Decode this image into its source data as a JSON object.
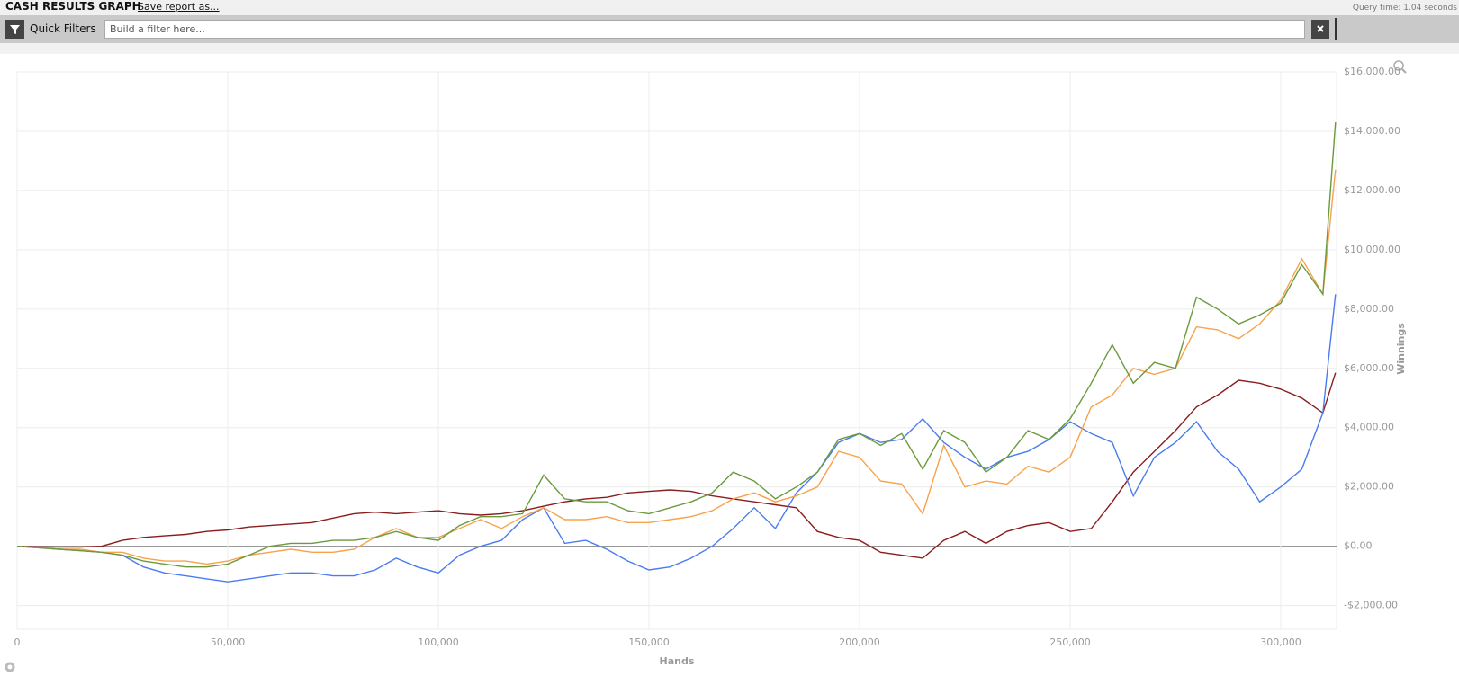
{
  "header": {
    "title": "CASH RESULTS GRAPH",
    "save_link": "Save report as...",
    "query_time": "Query time: 1.04 seconds"
  },
  "toolbar": {
    "quick_filters": "Quick Filters",
    "filter_placeholder": "Build a filter here..."
  },
  "chart_data": {
    "type": "line",
    "x_label": "Hands",
    "y_label": "Winnings",
    "grid": true,
    "xlim": [
      0,
      313250
    ],
    "ylim": [
      -2800,
      16000
    ],
    "xticks": [
      0,
      {
        "value": 50000,
        "label": "50,000"
      },
      {
        "value": 100000,
        "label": "100,000"
      },
      {
        "value": 150000,
        "label": "150,000"
      },
      {
        "value": 200000,
        "label": "200,000"
      },
      {
        "value": 250000,
        "label": "250,000"
      },
      {
        "value": 300000,
        "label": "300,000"
      }
    ],
    "yticks": [
      {
        "value": -2000,
        "label": "-$2,000.00"
      },
      {
        "value": 0,
        "label": "$0.00"
      },
      {
        "value": 2000,
        "label": "$2,000.00"
      },
      {
        "value": 4000,
        "label": "$4,000.00"
      },
      {
        "value": 6000,
        "label": "$6,000.00"
      },
      {
        "value": 8000,
        "label": "$8,000.00"
      },
      {
        "value": 10000,
        "label": "$10,000.00"
      },
      {
        "value": 12000,
        "label": "$12,000.00"
      },
      {
        "value": 14000,
        "label": "$14,000.00"
      },
      {
        "value": 16000,
        "label": "$16,000.00"
      }
    ],
    "x": [
      0,
      5000,
      10000,
      15000,
      20000,
      25000,
      30000,
      35000,
      40000,
      45000,
      50000,
      55000,
      60000,
      65000,
      70000,
      75000,
      80000,
      85000,
      90000,
      95000,
      100000,
      105000,
      110000,
      115000,
      120000,
      125000,
      130000,
      135000,
      140000,
      145000,
      150000,
      155000,
      160000,
      165000,
      170000,
      175000,
      180000,
      185000,
      190000,
      195000,
      200000,
      205000,
      210000,
      215000,
      220000,
      225000,
      230000,
      235000,
      240000,
      245000,
      250000,
      255000,
      260000,
      265000,
      270000,
      275000,
      280000,
      285000,
      290000,
      295000,
      300000,
      305000,
      310000,
      313000
    ],
    "series": [
      {
        "color": "#8b1c1c",
        "values": [
          0,
          -20,
          -30,
          -30,
          0,
          200,
          300,
          350,
          400,
          500,
          550,
          650,
          700,
          750,
          800,
          950,
          1100,
          1150,
          1100,
          1150,
          1200,
          1100,
          1050,
          1100,
          1200,
          1350,
          1500,
          1600,
          1650,
          1800,
          1850,
          1900,
          1850,
          1700,
          1600,
          1500,
          1400,
          1300,
          500,
          300,
          200,
          -200,
          -300,
          -400,
          200,
          500,
          100,
          500,
          700,
          800,
          500,
          600,
          1500,
          2500,
          3200,
          3900,
          4700,
          5100,
          5600,
          5500,
          5300,
          5000,
          4500,
          5850
        ]
      },
      {
        "color": "#4a7cf0",
        "values": [
          0,
          -50,
          -100,
          -150,
          -200,
          -300,
          -700,
          -900,
          -1000,
          -1100,
          -1200,
          -1100,
          -1000,
          -900,
          -900,
          -1000,
          -1000,
          -800,
          -400,
          -700,
          -900,
          -300,
          0,
          200,
          900,
          1300,
          100,
          200,
          -100,
          -500,
          -800,
          -700,
          -400,
          0,
          600,
          1300,
          600,
          1800,
          2500,
          3500,
          3800,
          3500,
          3600,
          4300,
          3500,
          3000,
          2600,
          3000,
          3200,
          3600,
          4200,
          3800,
          3500,
          1700,
          3000,
          3500,
          4200,
          3200,
          2600,
          1500,
          2000,
          2600,
          4500,
          8500
        ]
      },
      {
        "color": "#f7a24c",
        "values": [
          0,
          -50,
          -100,
          -100,
          -200,
          -200,
          -400,
          -500,
          -500,
          -600,
          -500,
          -300,
          -200,
          -100,
          -200,
          -200,
          -100,
          300,
          600,
          300,
          300,
          600,
          900,
          600,
          1000,
          1300,
          900,
          900,
          1000,
          800,
          800,
          900,
          1000,
          1200,
          1600,
          1800,
          1500,
          1700,
          2000,
          3200,
          3000,
          2200,
          2100,
          1100,
          3400,
          2000,
          2200,
          2100,
          2700,
          2500,
          3000,
          4700,
          5100,
          6000,
          5800,
          6000,
          7400,
          7300,
          7000,
          7500,
          8300,
          9700,
          8500,
          12700
        ]
      },
      {
        "color": "#6b9a3c",
        "values": [
          0,
          -50,
          -100,
          -150,
          -200,
          -300,
          -500,
          -600,
          -700,
          -700,
          -600,
          -300,
          0,
          100,
          100,
          200,
          200,
          300,
          500,
          300,
          200,
          700,
          1000,
          1000,
          1100,
          2400,
          1600,
          1500,
          1500,
          1200,
          1100,
          1300,
          1500,
          1800,
          2500,
          2200,
          1600,
          2000,
          2500,
          3600,
          3800,
          3400,
          3800,
          2600,
          3900,
          3500,
          2500,
          3000,
          3900,
          3600,
          4300,
          5500,
          6800,
          5500,
          6200,
          6000,
          8400,
          8000,
          7500,
          7800,
          8200,
          9500,
          8500,
          14300
        ]
      }
    ]
  }
}
